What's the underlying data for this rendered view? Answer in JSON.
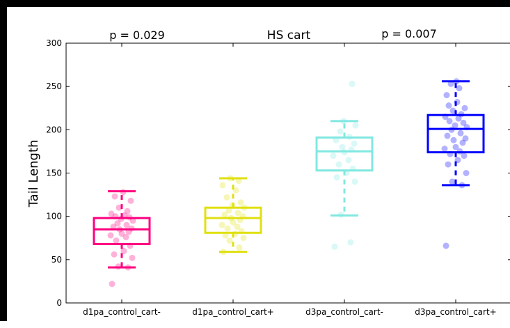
{
  "chart_data": {
    "type": "box",
    "title": "HS cart",
    "ylabel": "Tail Length",
    "xlabel": "",
    "ylim": [
      0,
      300
    ],
    "yticks": [
      0,
      50,
      100,
      150,
      200,
      250,
      300
    ],
    "grid": false,
    "annotations": [
      "p = 0.029",
      "p = 0.007"
    ],
    "categories": [
      "d1pa_control_cart-",
      "d1pa_control_cart+",
      "d3pa_control_cart-",
      "d3pa_control_cart+"
    ],
    "series": [
      {
        "category": "d1pa_control_cart-",
        "color": "#ff0080",
        "whisker_low": 41,
        "q1": 68,
        "median": 85,
        "q3": 98,
        "whisker_high": 129,
        "points": [
          22,
          41,
          42,
          52,
          56,
          60,
          66,
          72,
          76,
          78,
          80,
          82,
          85,
          86,
          88,
          90,
          92,
          95,
          97,
          99,
          100,
          101,
          103,
          106,
          110,
          118,
          123,
          128
        ]
      },
      {
        "category": "d1pa_control_cart+",
        "color": "#e0e010",
        "whisker_low": 59,
        "q1": 81,
        "median": 98,
        "q3": 110,
        "whisker_high": 144,
        "points": [
          59,
          64,
          72,
          75,
          78,
          80,
          83,
          86,
          88,
          90,
          93,
          96,
          98,
          100,
          102,
          104,
          107,
          110,
          113,
          116,
          122,
          130,
          136,
          141,
          144
        ]
      },
      {
        "category": "d3pa_control_cart-",
        "color": "#80e8e0",
        "whisker_low": 101,
        "q1": 153,
        "median": 175,
        "q3": 191,
        "whisker_high": 210,
        "points": [
          65,
          70,
          102,
          140,
          145,
          150,
          155,
          160,
          165,
          170,
          174,
          177,
          180,
          184,
          188,
          192,
          198,
          205,
          210,
          253
        ]
      },
      {
        "category": "d3pa_control_cart+",
        "color": "#0000ff",
        "whisker_low": 136,
        "q1": 174,
        "median": 201,
        "q3": 217,
        "whisker_high": 256,
        "points": [
          66,
          136,
          140,
          150,
          160,
          165,
          170,
          172,
          175,
          178,
          180,
          185,
          188,
          190,
          193,
          196,
          200,
          203,
          205,
          208,
          210,
          213,
          215,
          218,
          222,
          225,
          228,
          232,
          240,
          248,
          253,
          256
        ]
      }
    ]
  }
}
